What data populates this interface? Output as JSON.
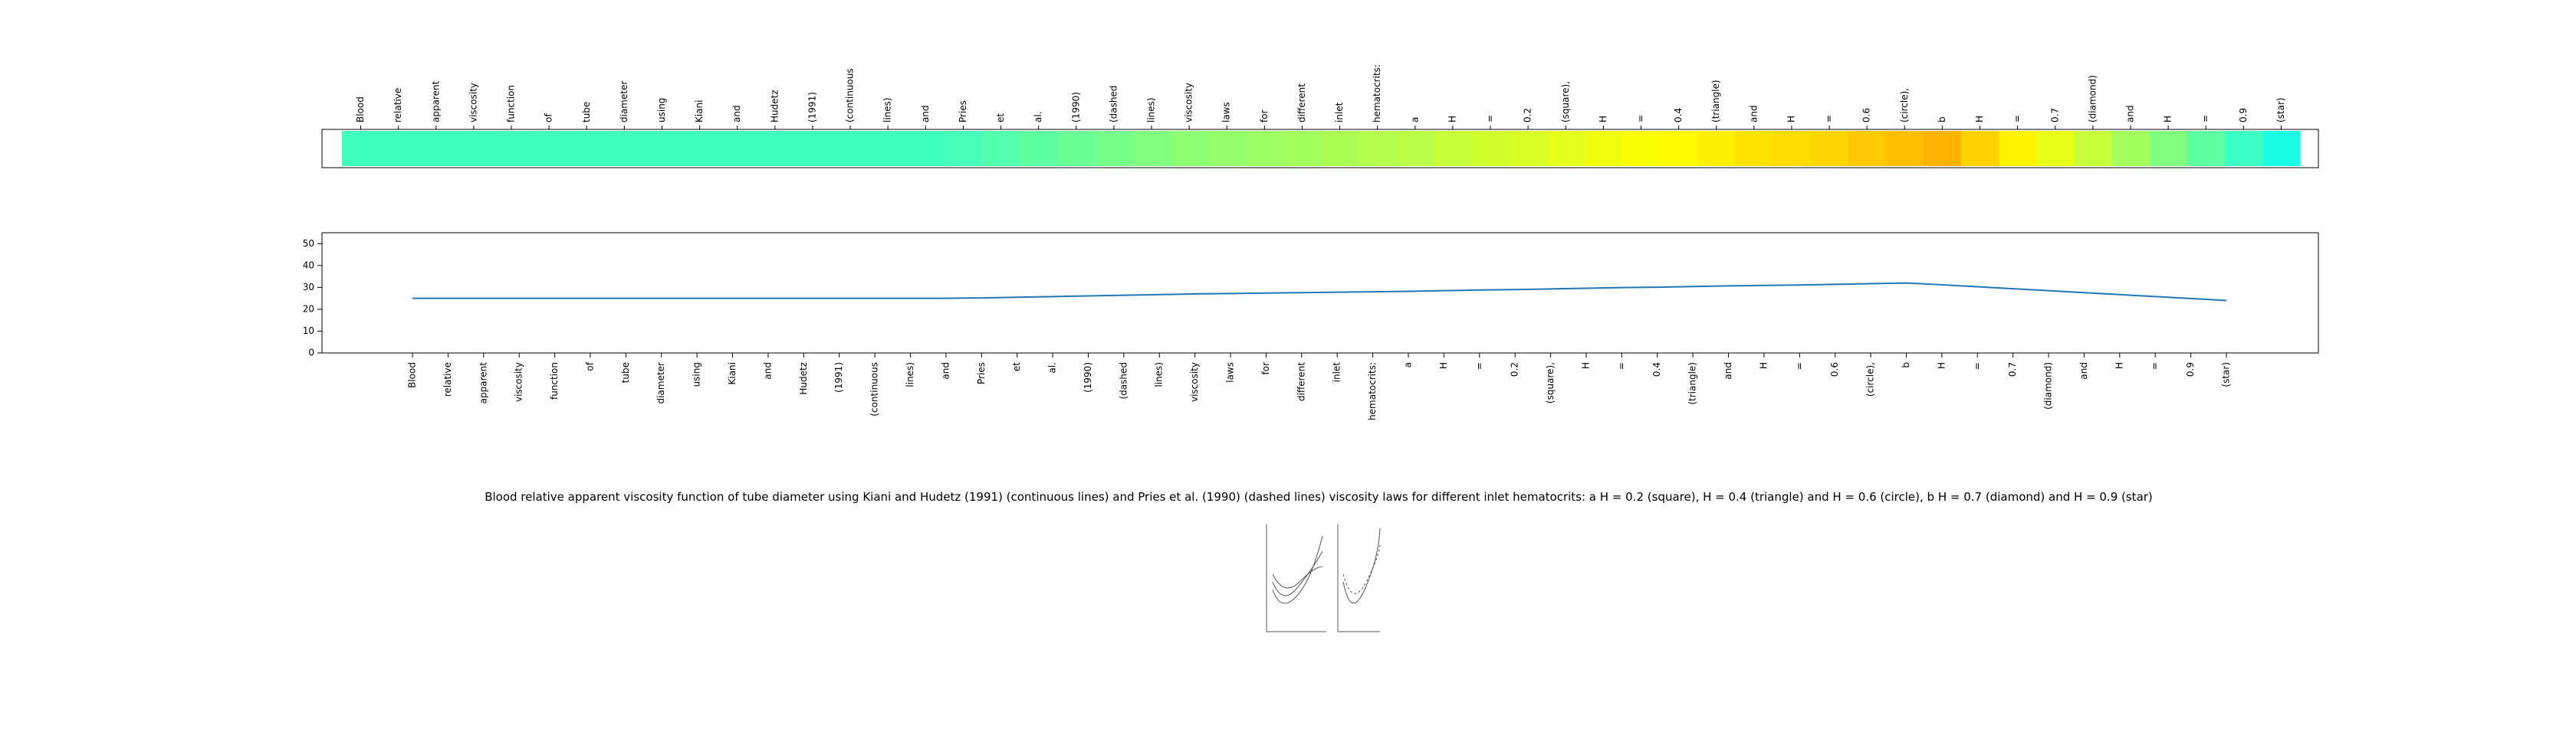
{
  "chart_data": {
    "type": "line",
    "caption": "Blood relative apparent viscosity function of tube diameter using Kiani and Hudetz (1991) (continuous lines) and Pries et al. (1990) (dashed lines) viscosity laws for different inlet hematocrits: a H = 0.2 (square), H = 0.4 (triangle) and H = 0.6 (circle), b H = 0.7 (diamond) and H = 0.9 (star)",
    "categories": [
      "Blood",
      "relative",
      "apparent",
      "viscosity",
      "function",
      "of",
      "tube",
      "diameter",
      "using",
      "Kiani",
      "and",
      "Hudetz",
      "(1991)",
      "(continuous",
      "lines)",
      "and",
      "Pries",
      "et",
      "al.",
      "(1990)",
      "(dashed",
      "lines)",
      "viscosity",
      "laws",
      "for",
      "different",
      "inlet",
      "hematocrits:",
      "a",
      "H",
      "=",
      "0.2",
      "(square),",
      "H",
      "=",
      "0.4",
      "(triangle)",
      "and",
      "H",
      "=",
      "0.6",
      "(circle),",
      "b",
      "H",
      "=",
      "0.7",
      "(diamond)",
      "and",
      "H",
      "=",
      "0.9",
      "(star)"
    ],
    "values": [
      25,
      25,
      25,
      25,
      25,
      25,
      25,
      25,
      25,
      25,
      25,
      25,
      25,
      25,
      25,
      25,
      25.2,
      25.5,
      25.8,
      26.1,
      26.4,
      26.7,
      27,
      27.2,
      27.4,
      27.6,
      27.8,
      28,
      28.2,
      28.5,
      28.8,
      29,
      29.3,
      29.6,
      29.9,
      30.1,
      30.4,
      30.7,
      30.9,
      31.1,
      31.4,
      31.7,
      32,
      31.2,
      30.3,
      29.4,
      28.5,
      27.6,
      26.7,
      25.8,
      24.9,
      24
    ],
    "color": "#1f77b4",
    "ylim": [
      0,
      55
    ],
    "yticks": [
      0,
      10,
      20,
      30,
      40,
      50
    ]
  }
}
